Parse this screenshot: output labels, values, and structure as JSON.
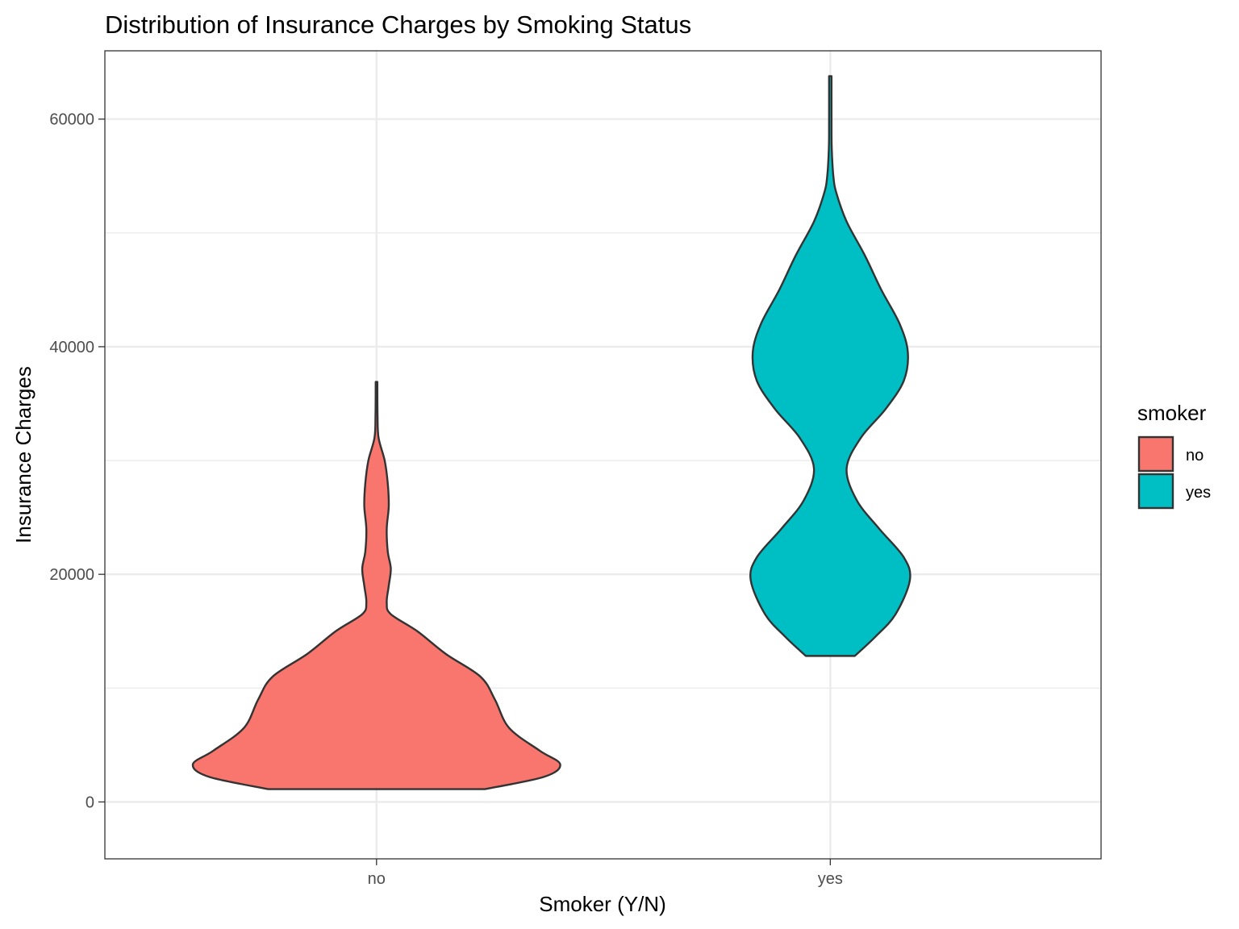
{
  "chart_data": {
    "type": "violin",
    "title": "Distribution of Insurance Charges by Smoking Status",
    "xlabel": "Smoker (Y/N)",
    "ylabel": "Insurance Charges",
    "categories": [
      "no",
      "yes"
    ],
    "ylim": [
      -5000,
      66000
    ],
    "yticks": [
      0,
      20000,
      40000,
      60000
    ],
    "ytick_labels": [
      "0",
      "20000",
      "40000",
      "60000"
    ],
    "grid": true,
    "legend": {
      "title": "smoker",
      "position": "right",
      "entries": [
        {
          "label": "no",
          "color": "#F8766D"
        },
        {
          "label": "yes",
          "color": "#00BFC4"
        }
      ]
    },
    "series": [
      {
        "category": "no",
        "color": "#F8766D",
        "min": 1122,
        "max": 36911,
        "density_profile": [
          [
            1122,
            0.53
          ],
          [
            2200,
            0.82
          ],
          [
            3300,
            0.9
          ],
          [
            4500,
            0.8
          ],
          [
            6500,
            0.65
          ],
          [
            9000,
            0.58
          ],
          [
            11000,
            0.51
          ],
          [
            13000,
            0.34
          ],
          [
            15000,
            0.2
          ],
          [
            16500,
            0.07
          ],
          [
            17500,
            0.05
          ],
          [
            19000,
            0.06
          ],
          [
            20500,
            0.07
          ],
          [
            22000,
            0.055
          ],
          [
            24000,
            0.05
          ],
          [
            26000,
            0.06
          ],
          [
            28000,
            0.055
          ],
          [
            30000,
            0.04
          ],
          [
            32000,
            0.01
          ],
          [
            34000,
            0.005
          ],
          [
            36911,
            0.004
          ]
        ]
      },
      {
        "category": "yes",
        "color": "#00BFC4",
        "min": 12829,
        "max": 63770,
        "density_profile": [
          [
            12829,
            0.12
          ],
          [
            14500,
            0.22
          ],
          [
            16500,
            0.32
          ],
          [
            19500,
            0.39
          ],
          [
            21500,
            0.36
          ],
          [
            24000,
            0.24
          ],
          [
            26500,
            0.13
          ],
          [
            29300,
            0.08
          ],
          [
            32000,
            0.15
          ],
          [
            34500,
            0.27
          ],
          [
            37000,
            0.36
          ],
          [
            39500,
            0.38
          ],
          [
            42000,
            0.34
          ],
          [
            45000,
            0.25
          ],
          [
            48000,
            0.17
          ],
          [
            51000,
            0.08
          ],
          [
            53500,
            0.03
          ],
          [
            55000,
            0.015
          ],
          [
            57500,
            0.007
          ],
          [
            60000,
            0.006
          ],
          [
            63770,
            0.006
          ]
        ]
      }
    ]
  }
}
